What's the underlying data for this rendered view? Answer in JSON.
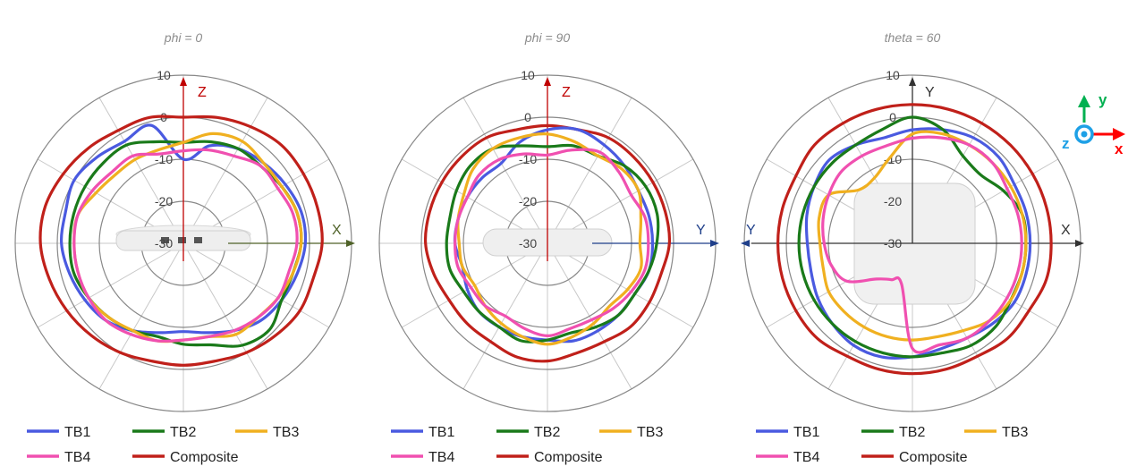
{
  "chart_data": [
    {
      "type": "polar-line",
      "title": "phi = 0",
      "radial_ticks": [
        "10",
        "0",
        "-10",
        "-20",
        "-30"
      ],
      "rlim": [
        -30,
        10
      ],
      "axes": {
        "up": "Z",
        "right": "X",
        "up_color": "#c00000",
        "right_color": "#4f6228"
      },
      "theta_deg": [
        0,
        15,
        30,
        45,
        60,
        75,
        90,
        105,
        120,
        135,
        150,
        165,
        180,
        195,
        210,
        225,
        240,
        255,
        270,
        285,
        300,
        315,
        330,
        345
      ],
      "series": [
        {
          "name": "TB1",
          "color": "#4a5ae0",
          "values": [
            -10,
            -6,
            -4,
            -3,
            -2,
            -1,
            -1,
            -2,
            -3,
            -4,
            -6,
            -8,
            -9,
            -8,
            -6,
            -4,
            -3,
            -2,
            -1,
            -1,
            0,
            -1,
            -2,
            -1
          ]
        },
        {
          "name": "TB2",
          "color": "#1a7a1a",
          "values": [
            -6,
            -5,
            -4,
            -4,
            -3,
            -2,
            -2,
            -3,
            -3,
            -1,
            -2,
            -5,
            -6,
            -7,
            -6,
            -5,
            -4,
            -3,
            -3,
            -3,
            -3,
            -3,
            -3,
            -5
          ]
        },
        {
          "name": "TB3",
          "color": "#f0b020",
          "values": [
            -6,
            -3,
            -2,
            -3,
            -3,
            -2,
            -2,
            -3,
            -4,
            -5,
            -5,
            -7,
            -7,
            -6,
            -6,
            -5,
            -4,
            -4,
            -4,
            -4,
            -6,
            -7,
            -7,
            -7
          ]
        },
        {
          "name": "TB4",
          "color": "#f050b0",
          "values": [
            -8,
            -7,
            -6,
            -4,
            -4,
            -3,
            -3,
            -4,
            -4,
            -5,
            -6,
            -7,
            -7,
            -6,
            -5,
            -4,
            -4,
            -4,
            -4,
            -4,
            -5,
            -6,
            -6,
            -8
          ]
        },
        {
          "name": "Composite",
          "color": "#c0201a",
          "values": [
            0,
            1,
            2,
            3,
            3,
            3,
            3,
            2,
            2,
            1,
            0,
            -1,
            -1,
            -1,
            0,
            1,
            2,
            3,
            4,
            4,
            3,
            2,
            1,
            1
          ]
        }
      ]
    },
    {
      "type": "polar-line",
      "title": "phi = 90",
      "radial_ticks": [
        "10",
        "0",
        "-10",
        "-20",
        "-30"
      ],
      "rlim": [
        -30,
        10
      ],
      "axes": {
        "up": "Z",
        "right": "Y",
        "up_color": "#c00000",
        "right_color": "#1f3f8a"
      },
      "theta_deg": [
        0,
        15,
        30,
        45,
        60,
        75,
        90,
        105,
        120,
        135,
        150,
        165,
        180,
        195,
        210,
        225,
        240,
        255,
        270,
        285,
        300,
        315,
        330,
        345
      ],
      "series": [
        {
          "name": "TB1",
          "color": "#4a5ae0",
          "values": [
            -3,
            -2,
            -3,
            -4,
            -5,
            -5,
            -5,
            -5,
            -6,
            -6,
            -6,
            -6,
            -7,
            -7,
            -7,
            -7,
            -8,
            -9,
            -8,
            -8,
            -8,
            -8,
            -8,
            -5
          ]
        },
        {
          "name": "TB2",
          "color": "#1a7a1a",
          "values": [
            -7,
            -6,
            -6,
            -4,
            -3,
            -3,
            -4,
            -5,
            -6,
            -6,
            -7,
            -8,
            -7,
            -6,
            -7,
            -7,
            -7,
            -6,
            -6,
            -6,
            -5,
            -4,
            -4,
            -6
          ]
        },
        {
          "name": "TB3",
          "color": "#f0b020",
          "values": [
            -4,
            -5,
            -6,
            -5,
            -5,
            -7,
            -8,
            -7,
            -8,
            -9,
            -8,
            -7,
            -6,
            -7,
            -8,
            -9,
            -10,
            -9,
            -9,
            -8,
            -7,
            -5,
            -4,
            -4
          ]
        },
        {
          "name": "TB4",
          "color": "#f050b0",
          "values": [
            -9,
            -7,
            -5,
            -6,
            -7,
            -6,
            -6,
            -6,
            -7,
            -8,
            -9,
            -9,
            -8,
            -9,
            -10,
            -9,
            -9,
            -8,
            -8,
            -8,
            -8,
            -7,
            -7,
            -8
          ]
        },
        {
          "name": "Composite",
          "color": "#c0201a",
          "values": [
            -2,
            -2,
            -1,
            -1,
            -1,
            -1,
            -1,
            -2,
            -2,
            -2,
            -3,
            -3,
            -2,
            -2,
            -3,
            -3,
            -3,
            -2,
            -1,
            -1,
            -1,
            -1,
            -1,
            -2
          ]
        }
      ]
    },
    {
      "type": "polar-line",
      "title": "theta = 60",
      "radial_ticks": [
        "10",
        "0",
        "-10",
        "-20",
        "-30"
      ],
      "rlim": [
        -30,
        10
      ],
      "axes": {
        "up": "Y",
        "right": "X",
        "left": "Y",
        "up_color": "#333333",
        "right_color": "#333333",
        "left_color": "#1f3f8a"
      },
      "theta_deg": [
        0,
        15,
        30,
        45,
        60,
        75,
        90,
        105,
        120,
        135,
        150,
        165,
        180,
        195,
        210,
        225,
        240,
        255,
        270,
        285,
        300,
        315,
        330,
        345
      ],
      "series": [
        {
          "name": "TB1",
          "color": "#4a5ae0",
          "values": [
            -3,
            -2,
            -1,
            -1,
            -2,
            -2,
            -2,
            -2,
            -2,
            -3,
            -4,
            -4,
            -3,
            -2,
            -2,
            -3,
            -4,
            -5,
            -5,
            -4,
            -3,
            -2,
            -3,
            -4
          ]
        },
        {
          "name": "TB2",
          "color": "#1a7a1a",
          "values": [
            0,
            -2,
            -6,
            -7,
            -5,
            -3,
            -3,
            -3,
            -3,
            -2,
            -2,
            -3,
            -3,
            -3,
            -3,
            -3,
            -3,
            -3,
            -3,
            -3,
            -3,
            -3,
            -3,
            -2
          ]
        },
        {
          "name": "TB3",
          "color": "#f0b020",
          "values": [
            -4,
            -3,
            -3,
            -3,
            -3,
            -3,
            -3,
            -3,
            -3,
            -4,
            -6,
            -7,
            -7,
            -7,
            -7,
            -7,
            -7,
            -8,
            -8,
            -7,
            -7,
            -12,
            -12,
            -9
          ]
        },
        {
          "name": "TB4",
          "color": "#f050b0",
          "values": [
            -5,
            -4,
            -3,
            -3,
            -4,
            -4,
            -4,
            -4,
            -4,
            -4,
            -4,
            -5,
            -5,
            -20,
            -20,
            -18,
            -12,
            -10,
            -9,
            -8,
            -7,
            -6,
            -6,
            -6
          ]
        },
        {
          "name": "Composite",
          "color": "#c0201a",
          "values": [
            3,
            3,
            3,
            3,
            3,
            3,
            3,
            3,
            2,
            2,
            1,
            1,
            1,
            1,
            1,
            2,
            2,
            2,
            2,
            2,
            2,
            3,
            3,
            3
          ]
        }
      ]
    }
  ],
  "legend_labels": [
    "TB1",
    "TB2",
    "TB3",
    "TB4",
    "Composite"
  ],
  "coordinate_icon": {
    "x": "x",
    "y": "y",
    "z": "z",
    "x_color": "#ff0000",
    "y_color": "#00b050",
    "z_color": "#1ea0e6"
  }
}
